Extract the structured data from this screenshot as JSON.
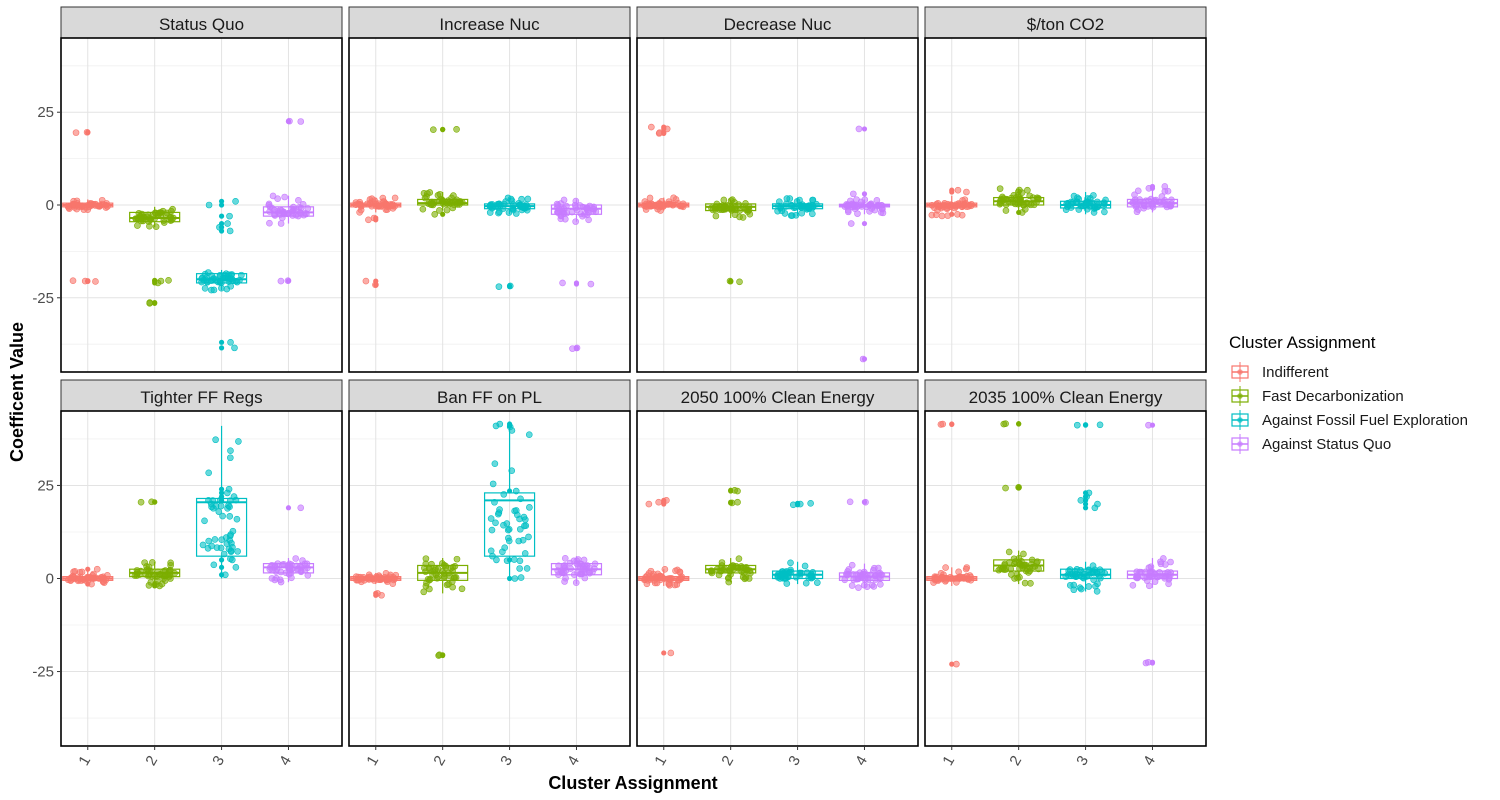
{
  "chart_data": {
    "type": "boxplot",
    "xlabel": "Cluster Assignment",
    "ylabel": "Coefficent Value",
    "ylim": [
      -45,
      45
    ],
    "yticks": [
      -25,
      0,
      25
    ],
    "categories": [
      "1",
      "2",
      "3",
      "4"
    ],
    "grid": true,
    "legend": {
      "title": "Cluster Assignment",
      "position": "right",
      "entries": [
        {
          "name": "Indifferent",
          "color": "#F8766D"
        },
        {
          "name": "Fast Decarbonization",
          "color": "#7CAE00"
        },
        {
          "name": "Against Fossil Fuel Exploration",
          "color": "#00BFC4"
        },
        {
          "name": "Against Status Quo",
          "color": "#C77CFF"
        }
      ]
    },
    "panels": [
      {
        "title": "Status Quo",
        "clusters": [
          {
            "box": [
              -1.5,
              -0.5,
              0.0,
              0.5,
              1.5
            ],
            "outliers": [
              19.5,
              19.6,
              -20.5,
              -20.4,
              -20.6
            ]
          },
          {
            "box": [
              -6,
              -4.5,
              -3.5,
              -2.0,
              -0.5
            ],
            "outliers": [
              -20.5,
              -20.3,
              -21,
              -26.5,
              -26.3
            ]
          },
          {
            "box": [
              -23,
              -21,
              -20,
              -18.5,
              -17.5
            ],
            "outliers": [
              -7,
              -6,
              -5,
              -3,
              0,
              1,
              -37,
              -38.5
            ]
          },
          {
            "box": [
              -5,
              -3,
              -2,
              -0.5,
              2.5
            ],
            "outliers": [
              22.5,
              22.6,
              -20.5,
              -20.4
            ]
          }
        ]
      },
      {
        "title": "Increase Nuc",
        "clusters": [
          {
            "box": [
              -2,
              -0.5,
              0.0,
              0.5,
              2
            ],
            "outliers": [
              -4,
              -3.5,
              -20.5,
              -21.5
            ]
          },
          {
            "box": [
              -1.5,
              0.0,
              0.5,
              1.5,
              3.5
            ],
            "outliers": [
              20.3,
              20.4,
              -2.5
            ]
          },
          {
            "box": [
              -2.5,
              -1.0,
              -0.3,
              0.3,
              2
            ],
            "outliers": [
              -22,
              -21.8
            ]
          },
          {
            "box": [
              -4.5,
              -2.5,
              -1.0,
              0.0,
              1.5
            ],
            "outliers": [
              -21,
              -21.3,
              -38.5,
              -38.7
            ]
          }
        ]
      },
      {
        "title": "Decrease Nuc",
        "clusters": [
          {
            "box": [
              -1.5,
              -0.5,
              0.0,
              0.5,
              2
            ],
            "outliers": [
              19.5,
              20.5,
              21,
              19.3
            ]
          },
          {
            "box": [
              -3.5,
              -1.5,
              -0.5,
              0.3,
              1.5
            ],
            "outliers": [
              -20.5,
              -20.7
            ]
          },
          {
            "box": [
              -3,
              -1.0,
              -0.3,
              0.3,
              2
            ],
            "outliers": []
          },
          {
            "box": [
              -2.5,
              -0.5,
              -0.1,
              0.2,
              1.5
            ],
            "outliers": [
              20.5,
              3,
              -5,
              -41.5
            ]
          }
        ]
      },
      {
        "title": "$/ton CO2",
        "clusters": [
          {
            "box": [
              -3,
              -0.5,
              0.0,
              0.5,
              2.5
            ],
            "outliers": [
              3.5,
              4,
              -2.5
            ]
          },
          {
            "box": [
              -1.5,
              0.0,
              1.0,
              2.0,
              4.5
            ],
            "outliers": [
              -2
            ]
          },
          {
            "box": [
              -2.5,
              -0.8,
              0.0,
              1.0,
              3.5
            ],
            "outliers": []
          },
          {
            "box": [
              -2,
              -0.5,
              0.5,
              1.5,
              4
            ],
            "outliers": [
              5,
              4.5
            ]
          }
        ]
      },
      {
        "title": "Tighter FF Regs",
        "clusters": [
          {
            "box": [
              -1.5,
              -0.5,
              0.0,
              0.5,
              2
            ],
            "outliers": [
              2.5,
              -1.5
            ]
          },
          {
            "box": [
              -2,
              0.5,
              1.5,
              2.5,
              4.5
            ],
            "outliers": [
              20.5,
              20.6,
              -2,
              -1.5
            ]
          },
          {
            "box": [
              0,
              6,
              20.5,
              21.5,
              41
            ],
            "outliers": [
              24,
              23,
              22,
              21,
              5,
              3,
              1
            ]
          },
          {
            "box": [
              -1,
              1.5,
              3.0,
              4.0,
              5.5
            ],
            "outliers": [
              19
            ]
          }
        ]
      },
      {
        "title": "Ban FF on PL",
        "clusters": [
          {
            "box": [
              -1.5,
              -0.5,
              0.0,
              0.5,
              1.5
            ],
            "outliers": [
              -4,
              -4.5
            ]
          },
          {
            "box": [
              -4,
              -0.5,
              1.5,
              3.5,
              5.5
            ],
            "outliers": [
              -20.5,
              -20.7
            ]
          },
          {
            "box": [
              0,
              6,
              21,
              23,
              41
            ],
            "outliers": [
              41.5,
              41,
              23.5,
              5,
              0
            ]
          },
          {
            "box": [
              -1.5,
              1.0,
              2.5,
              4.0,
              6
            ],
            "outliers": []
          }
        ]
      },
      {
        "title": "2050 100% Clean Energy",
        "clusters": [
          {
            "box": [
              -2,
              -0.5,
              0.0,
              0.5,
              2.5
            ],
            "outliers": [
              21,
              20.5,
              20,
              -20
            ]
          },
          {
            "box": [
              -1,
              1.5,
              2.5,
              3.5,
              5.5
            ],
            "outliers": [
              23.5,
              23.7,
              20.5,
              20.3
            ]
          },
          {
            "box": [
              -1.5,
              0.0,
              1.0,
              2.0,
              4.5
            ],
            "outliers": [
              20,
              20.2,
              19.8
            ]
          },
          {
            "box": [
              -2.5,
              -0.5,
              0.5,
              1.5,
              4
            ],
            "outliers": [
              20.5,
              20.6
            ]
          }
        ]
      },
      {
        "title": "2035 100% Clean Energy",
        "clusters": [
          {
            "box": [
              -2,
              -0.5,
              0.0,
              0.5,
              3
            ],
            "outliers": [
              41.5,
              41.4,
              -23
            ]
          },
          {
            "box": [
              -1.5,
              2.0,
              3.5,
              5.0,
              7.5
            ],
            "outliers": [
              41.5,
              41.6,
              24.5,
              24.3
            ]
          },
          {
            "box": [
              -3.5,
              0.0,
              1.0,
              2.5,
              4.5
            ],
            "outliers": [
              41.3,
              41.2,
              23,
              22,
              21,
              20,
              19
            ]
          },
          {
            "box": [
              -2.5,
              0.0,
              1.0,
              2.0,
              5.5
            ],
            "outliers": [
              41.2,
              -22.5,
              -22.7
            ]
          }
        ]
      }
    ]
  }
}
